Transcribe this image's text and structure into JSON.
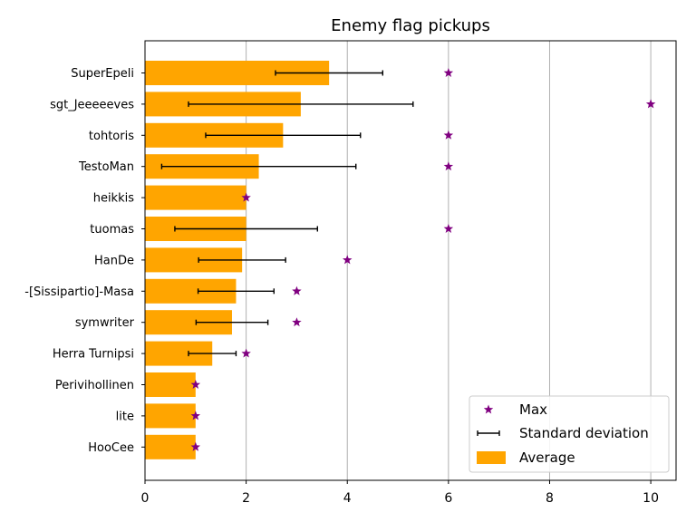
{
  "chart_data": {
    "type": "bar",
    "orientation": "horizontal",
    "title": "Enemy flag pickups",
    "xlabel": "",
    "ylabel": "",
    "xlim": [
      0,
      10.5
    ],
    "xticks": [
      0,
      2,
      4,
      6,
      8,
      10
    ],
    "grid": "vertical",
    "categories": [
      "SuperEpeli",
      "sgt_Jeeeeeves",
      "tohtoris",
      "TestoMan",
      "heikkis",
      "tuomas",
      "HanDe",
      "-[Sissipartio]-Masa",
      "symwriter",
      "Herra Turnipsi",
      "Perivihollinen",
      "lite",
      "HooCee"
    ],
    "series": [
      {
        "name": "Average",
        "kind": "bar",
        "color": "#ffa500",
        "values": [
          3.64,
          3.08,
          2.73,
          2.25,
          2.0,
          2.0,
          1.92,
          1.8,
          1.72,
          1.33,
          1.0,
          1.0,
          1.0
        ]
      },
      {
        "name": "Standard deviation",
        "kind": "errorbar",
        "color": "#000000",
        "values": [
          1.06,
          2.22,
          1.53,
          1.92,
          0.0,
          1.41,
          0.86,
          0.75,
          0.71,
          0.47,
          0.0,
          0.0,
          0.0
        ]
      },
      {
        "name": "Max",
        "kind": "marker",
        "marker": "star",
        "color": "#800080",
        "values": [
          6,
          10,
          6,
          6,
          2,
          6,
          4,
          3,
          3,
          2,
          1,
          1,
          1
        ]
      }
    ],
    "legend": {
      "position": "bottom-right",
      "entries": [
        "Max",
        "Standard deviation",
        "Average"
      ]
    }
  }
}
